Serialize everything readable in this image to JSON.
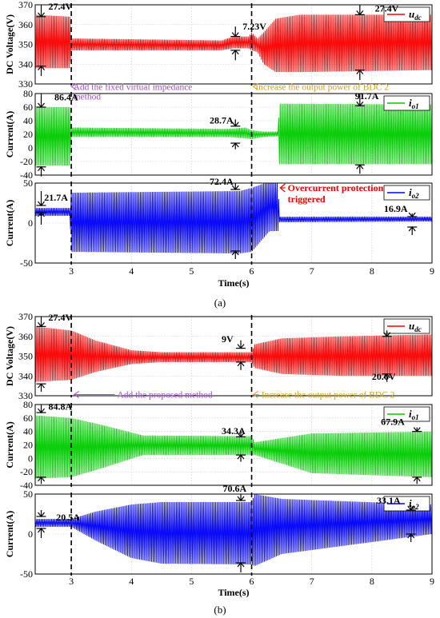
{
  "figure": {
    "panels": [
      {
        "caption": "(a)",
        "xlabel": "Time(s)",
        "x_ticks": [
          "3",
          "4",
          "5",
          "6",
          "7",
          "8",
          "9"
        ],
        "xlim": [
          2.4,
          9
        ],
        "subplots": [
          {
            "ylabel": "DC Voltage(V)",
            "ylim": [
              330,
              370
            ],
            "y_ticks": [
              "330",
              "340",
              "350",
              "360",
              "370"
            ],
            "legend": {
              "symbol": "u",
              "subscript": "dc",
              "color": "#ff0000"
            },
            "annotations": [
              {
                "text": "27.4V",
                "t": 2.62,
                "v": 367.5
              },
              {
                "text": "7.23V",
                "t": 5.85,
                "v": 357.5
              },
              {
                "text": "27.4V",
                "t": 8.05,
                "v": 366.5
              }
            ],
            "arrows": [
              {
                "t": 2.5,
                "v1": 370,
                "v2": 364,
                "dir": "down"
              },
              {
                "t": 2.5,
                "v1": 334,
                "v2": 339,
                "dir": "up"
              },
              {
                "t": 5.73,
                "v1": 359,
                "v2": 354,
                "dir": "down"
              },
              {
                "t": 5.73,
                "v1": 342,
                "v2": 347,
                "dir": "up"
              },
              {
                "t": 7.8,
                "v1": 370,
                "v2": 365,
                "dir": "down"
              },
              {
                "t": 7.8,
                "v1": 332,
                "v2": 337,
                "dir": "up"
              }
            ],
            "notes": [
              {
                "lines": [
                  "Add the fixed virtual impedance",
                  "method"
                ],
                "color": "#a44ed6",
                "t": 3.02,
                "v": 327,
                "arrow_to": 2.98
              },
              {
                "lines": [
                  "Increase  the output power of BDC 2"
                ],
                "color": "#d6a312",
                "t": 6.05,
                "v": 327,
                "arrow_to": 6.0
              }
            ]
          },
          {
            "ylabel": "Current(A)",
            "ylim": [
              -40,
              80
            ],
            "y_ticks": [
              "-40",
              "-20",
              "0",
              "20",
              "40",
              "60",
              "80"
            ],
            "legend": {
              "symbol": "i",
              "subscript": "o1",
              "color": "#00cc00"
            },
            "annotations": [
              {
                "text": "86.4A",
                "t": 2.72,
                "v": 70
              },
              {
                "text": "28.7A",
                "t": 5.3,
                "v": 36
              },
              {
                "text": "91.7A",
                "t": 7.72,
                "v": 72
              }
            ],
            "arrows": [
              {
                "t": 2.5,
                "v1": 80,
                "v2": 60,
                "dir": "down"
              },
              {
                "t": 2.5,
                "v1": -42,
                "v2": -28,
                "dir": "up"
              },
              {
                "t": 5.73,
                "v1": 42,
                "v2": 32,
                "dir": "down"
              },
              {
                "t": 5.73,
                "v1": -2,
                "v2": 7,
                "dir": "up"
              },
              {
                "t": 7.8,
                "v1": 80,
                "v2": 62,
                "dir": "down"
              },
              {
                "t": 7.8,
                "v1": -38,
                "v2": -25,
                "dir": "up"
              }
            ]
          },
          {
            "ylabel": "Current(A)",
            "ylim": [
              -50,
              50
            ],
            "y_ticks": [
              "-50",
              "0",
              "50"
            ],
            "legend": {
              "symbol": "i",
              "subscript": "o2",
              "color": "#0000ff"
            },
            "annotations": [
              {
                "text": "21.7A",
                "t": 2.55,
                "v": 28
              },
              {
                "text": "72.4A",
                "t": 5.3,
                "v": 48
              },
              {
                "text": "16.9A",
                "t": 8.2,
                "v": 14
              }
            ],
            "arrows": [
              {
                "t": 2.5,
                "v1": 40,
                "v2": 22,
                "dir": "down"
              },
              {
                "t": 2.5,
                "v1": -2,
                "v2": 13,
                "dir": "up"
              },
              {
                "t": 5.73,
                "v1": 50,
                "v2": 42,
                "dir": "down"
              },
              {
                "t": 5.73,
                "v1": -45,
                "v2": -35,
                "dir": "up"
              },
              {
                "t": 8.67,
                "v1": 12,
                "v2": 8,
                "dir": "down"
              },
              {
                "t": 8.67,
                "v1": -15,
                "v2": -5,
                "dir": "up"
              }
            ],
            "callout": {
              "lines": [
                "Overcurrent protection",
                "triggered"
              ],
              "color": "#e60000",
              "t": 6.6,
              "v": 40,
              "arrow_to": 6.45
            }
          }
        ]
      },
      {
        "caption": "(b)",
        "xlabel": "Time(s)",
        "x_ticks": [
          "3",
          "4",
          "5",
          "6",
          "7",
          "8",
          "9"
        ],
        "xlim": [
          2.4,
          9
        ],
        "subplots": [
          {
            "ylabel": "DC Voltage(V)",
            "ylim": [
              330,
              370
            ],
            "y_ticks": [
              "330",
              "340",
              "350",
              "360",
              "370"
            ],
            "legend": {
              "symbol": "u",
              "subscript": "dc",
              "color": "#ff0000"
            },
            "annotations": [
              {
                "text": "27.4V",
                "t": 2.62,
                "v": 368
              },
              {
                "text": "9V",
                "t": 5.5,
                "v": 357
              },
              {
                "text": "20.6V",
                "t": 8.0,
                "v": 338
              }
            ],
            "arrows": [
              {
                "t": 2.5,
                "v1": 370,
                "v2": 365,
                "dir": "down"
              },
              {
                "t": 2.5,
                "v1": 332,
                "v2": 336,
                "dir": "up"
              },
              {
                "t": 5.82,
                "v1": 358,
                "v2": 354,
                "dir": "down"
              },
              {
                "t": 5.82,
                "v1": 343,
                "v2": 347,
                "dir": "up"
              },
              {
                "t": 8.25,
                "v1": 363,
                "v2": 360,
                "dir": "down"
              },
              {
                "t": 8.25,
                "v1": 337,
                "v2": 341,
                "dir": "up"
              }
            ],
            "notes": [
              {
                "lines": [
                  "Add the proposed method"
                ],
                "color": "#a44ed6",
                "t": 3.75,
                "v": 329,
                "arrow_to": 3.02
              },
              {
                "lines": [
                  "Increase  the output power of BDC 2"
                ],
                "color": "#d6a312",
                "t": 6.15,
                "v": 329,
                "arrow_to": 6.0
              }
            ]
          },
          {
            "ylabel": "Current(A)",
            "ylim": [
              -40,
              80
            ],
            "y_ticks": [
              "-40",
              "-20",
              "0",
              "20",
              "40",
              "60",
              "80"
            ],
            "legend": {
              "symbol": "i",
              "subscript": "o1",
              "color": "#00cc00"
            },
            "annotations": [
              {
                "text": "84.8A",
                "t": 2.62,
                "v": 72
              },
              {
                "text": "34.3A",
                "t": 5.5,
                "v": 36
              },
              {
                "text": "67.9A",
                "t": 8.15,
                "v": 50
              }
            ],
            "arrows": [
              {
                "t": 2.5,
                "v1": 80,
                "v2": 68,
                "dir": "down"
              },
              {
                "t": 2.5,
                "v1": -38,
                "v2": -28,
                "dir": "up"
              },
              {
                "t": 5.82,
                "v1": 42,
                "v2": 32,
                "dir": "down"
              },
              {
                "t": 5.82,
                "v1": -5,
                "v2": 5,
                "dir": "up"
              },
              {
                "t": 8.75,
                "v1": 46,
                "v2": 40,
                "dir": "down"
              },
              {
                "t": 8.75,
                "v1": -38,
                "v2": -28,
                "dir": "up"
              }
            ]
          },
          {
            "ylabel": "Current(A)",
            "ylim": [
              -50,
              50
            ],
            "y_ticks": [
              "-50",
              "0",
              "50"
            ],
            "legend": {
              "symbol": "i",
              "subscript": "o2",
              "color": "#0000ff"
            },
            "annotations": [
              {
                "text": "20.5A",
                "t": 2.75,
                "v": 17
              },
              {
                "text": "70.6A",
                "t": 5.52,
                "v": 53
              },
              {
                "text": "33.1A",
                "t": 8.08,
                "v": 38
              }
            ],
            "arrows": [
              {
                "t": 2.5,
                "v1": 30,
                "v2": 22,
                "dir": "down"
              },
              {
                "t": 2.5,
                "v1": -5,
                "v2": 7,
                "dir": "up"
              },
              {
                "t": 5.82,
                "v1": 50,
                "v2": 42,
                "dir": "down"
              },
              {
                "t": 5.82,
                "v1": -48,
                "v2": -36,
                "dir": "up"
              },
              {
                "t": 8.65,
                "v1": 36,
                "v2": 30,
                "dir": "down"
              },
              {
                "t": 8.65,
                "v1": -10,
                "v2": 0,
                "dir": "up"
              }
            ]
          }
        ]
      }
    ]
  },
  "chart_data": [
    {
      "type": "line",
      "panel": "(a)",
      "xlabel": "Time(s)",
      "xlim": [
        2.4,
        9
      ],
      "events": [
        3,
        6,
        6.45
      ],
      "subplots": [
        {
          "ylabel": "DC Voltage(V)",
          "ylim": [
            330,
            370
          ],
          "series": [
            {
              "name": "u_dc",
              "color": "#ff0000",
              "envelope": {
                "t": [
                  2.4,
                  2.98,
                  3.0,
                  5.5,
                  5.7,
                  5.95,
                  6.0,
                  6.1,
                  6.2,
                  6.4,
                  6.8,
                  9.0
                ],
                "upper": [
                  365,
                  364,
                  353,
                  352,
                  354,
                  354,
                  356,
                  353,
                  356,
                  363,
                  365,
                  365
                ],
                "lower": [
                  338,
                  338,
                  347,
                  347,
                  348,
                  348,
                  347,
                  346,
                  340,
                  336,
                  336,
                  337
                ]
              }
            }
          ]
        },
        {
          "ylabel": "Current(A)",
          "ylim": [
            -40,
            80
          ],
          "series": [
            {
              "name": "i_o1",
              "color": "#00cc00",
              "envelope": {
                "t": [
                  2.4,
                  2.98,
                  3.0,
                  5.6,
                  5.9,
                  6.0,
                  6.2,
                  6.44,
                  6.46,
                  9.0
                ],
                "upper": [
                  60,
                  60,
                  30,
                  28,
                  30,
                  26,
                  24,
                  24,
                  65,
                  64
                ],
                "lower": [
                  -26,
                  -26,
                  16,
                  16,
                  14,
                  13,
                  16,
                  17,
                  -24,
                  -24
                ]
              }
            }
          ]
        },
        {
          "ylabel": "Current(A)",
          "ylim": [
            -50,
            50
          ],
          "series": [
            {
              "name": "i_o2",
              "color": "#0000ff",
              "envelope": {
                "t": [
                  2.4,
                  2.98,
                  3.0,
                  5.8,
                  6.0,
                  6.3,
                  6.44,
                  6.46,
                  9.0
                ],
                "upper": [
                  19,
                  19,
                  38,
                  40,
                  44,
                  52,
                  52,
                  8,
                  8
                ],
                "lower": [
                  9,
                  9,
                  -36,
                  -38,
                  -36,
                  -10,
                  -10,
                  1,
                  2
                ]
              }
            }
          ]
        }
      ]
    },
    {
      "type": "line",
      "panel": "(b)",
      "xlabel": "Time(s)",
      "xlim": [
        2.4,
        9
      ],
      "events": [
        3,
        6
      ],
      "subplots": [
        {
          "ylabel": "DC Voltage(V)",
          "ylim": [
            330,
            370
          ],
          "series": [
            {
              "name": "u_dc",
              "color": "#ff0000",
              "envelope": {
                "t": [
                  2.4,
                  3.0,
                  3.4,
                  4.0,
                  4.5,
                  6.0,
                  6.05,
                  6.5,
                  7.5,
                  9.0
                ],
                "upper": [
                  365,
                  363,
                  358,
                  353,
                  352,
                  352,
                  356,
                  359,
                  360,
                  361
                ],
                "lower": [
                  337,
                  338,
                  342,
                  346,
                  347,
                  347,
                  344,
                  341,
                  340,
                  340
                ]
              }
            }
          ]
        },
        {
          "ylabel": "Current(A)",
          "ylim": [
            -40,
            80
          ],
          "series": [
            {
              "name": "i_o1",
              "color": "#00cc00",
              "envelope": {
                "t": [
                  2.4,
                  3.0,
                  3.5,
                  4.2,
                  6.0,
                  6.05,
                  7.0,
                  9.0
                ],
                "upper": [
                  64,
                  60,
                  50,
                  34,
                  33,
                  24,
                  37,
                  40
                ],
                "lower": [
                  -30,
                  -28,
                  -15,
                  5,
                  5,
                  5,
                  -22,
                  -28
                ]
              }
            }
          ]
        },
        {
          "ylabel": "Current(A)",
          "ylim": [
            -50,
            50
          ],
          "series": [
            {
              "name": "i_o2",
              "color": "#0000ff",
              "envelope": {
                "t": [
                  2.4,
                  3.0,
                  3.4,
                  4.0,
                  4.5,
                  6.0,
                  6.05,
                  6.5,
                  9.0
                ],
                "upper": [
                  19,
                  19,
                  28,
                  37,
                  40,
                  40,
                  50,
                  44,
                  37
                ],
                "lower": [
                  9,
                  9,
                  -8,
                  -30,
                  -37,
                  -38,
                  -40,
                  -25,
                  0
                ]
              }
            }
          ]
        }
      ]
    }
  ]
}
